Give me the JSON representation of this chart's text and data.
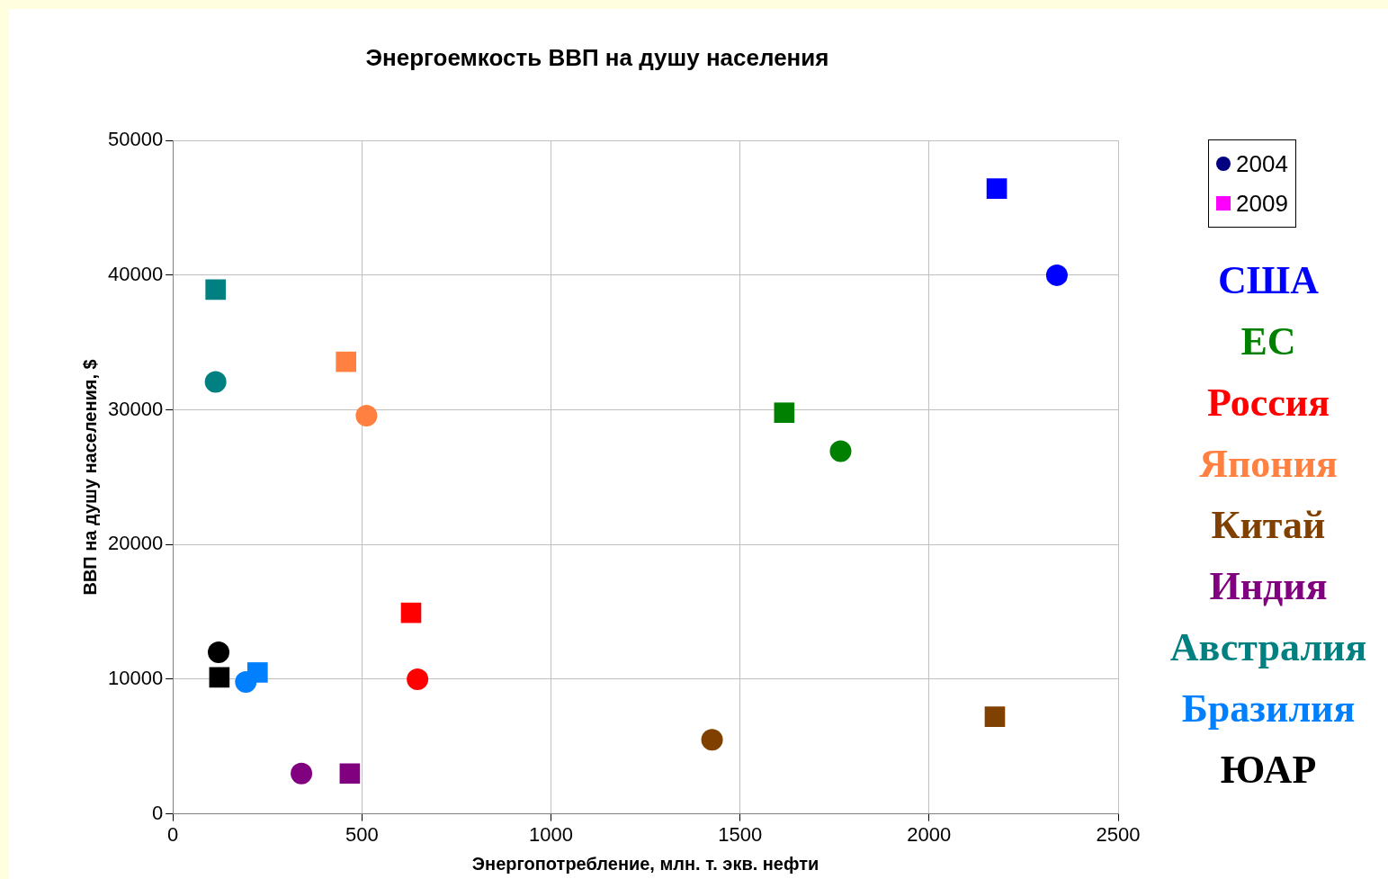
{
  "chart_data": {
    "type": "scatter",
    "title": "Энергоемкость ВВП на душу населения",
    "xlabel": "Энергопотребление, млн. т. экв. нефти",
    "ylabel": "ВВП на душу населения, $",
    "series": [
      {
        "name": "2004",
        "color": "#000080",
        "marker": "circle",
        "x": [
          2338,
          1766,
          647,
          512,
          1426,
          340,
          113,
          193,
          121
        ],
        "values": [
          40000,
          26930,
          10000,
          29570,
          5500,
          3000,
          32070,
          9790,
          12000
        ],
        "colors": [
          "#0000ff",
          "#008000",
          "#ff0000",
          "#ff8040",
          "#804000",
          "#800080",
          "#008080",
          "#0080ff",
          "#000000"
        ]
      },
      {
        "name": "2009",
        "color": "#ff00ff",
        "marker": "square",
        "x": [
          2179,
          1617,
          630,
          458,
          2174,
          468,
          113,
          224,
          123
        ],
        "values": [
          46430,
          29790,
          14930,
          33570,
          7210,
          3000,
          38930,
          10500,
          10140
        ],
        "colors": [
          "#0000ff",
          "#008000",
          "#ff0000",
          "#ff8040",
          "#804000",
          "#800080",
          "#008080",
          "#0080ff",
          "#000000"
        ]
      }
    ],
    "annotations": [
      "США",
      "ЕС",
      "Россия",
      "Япония",
      "Китай",
      "Индия",
      "Австралия",
      "Бразилия",
      "ЮАР"
    ],
    "xlim": [
      0,
      2500
    ],
    "xticks": [
      0,
      500,
      1000,
      1500,
      2000,
      2500
    ],
    "ylim": [
      0,
      50000
    ],
    "yticks": [
      0,
      10000,
      20000,
      30000,
      40000,
      50000
    ],
    "grid": true,
    "legend": "right"
  }
}
